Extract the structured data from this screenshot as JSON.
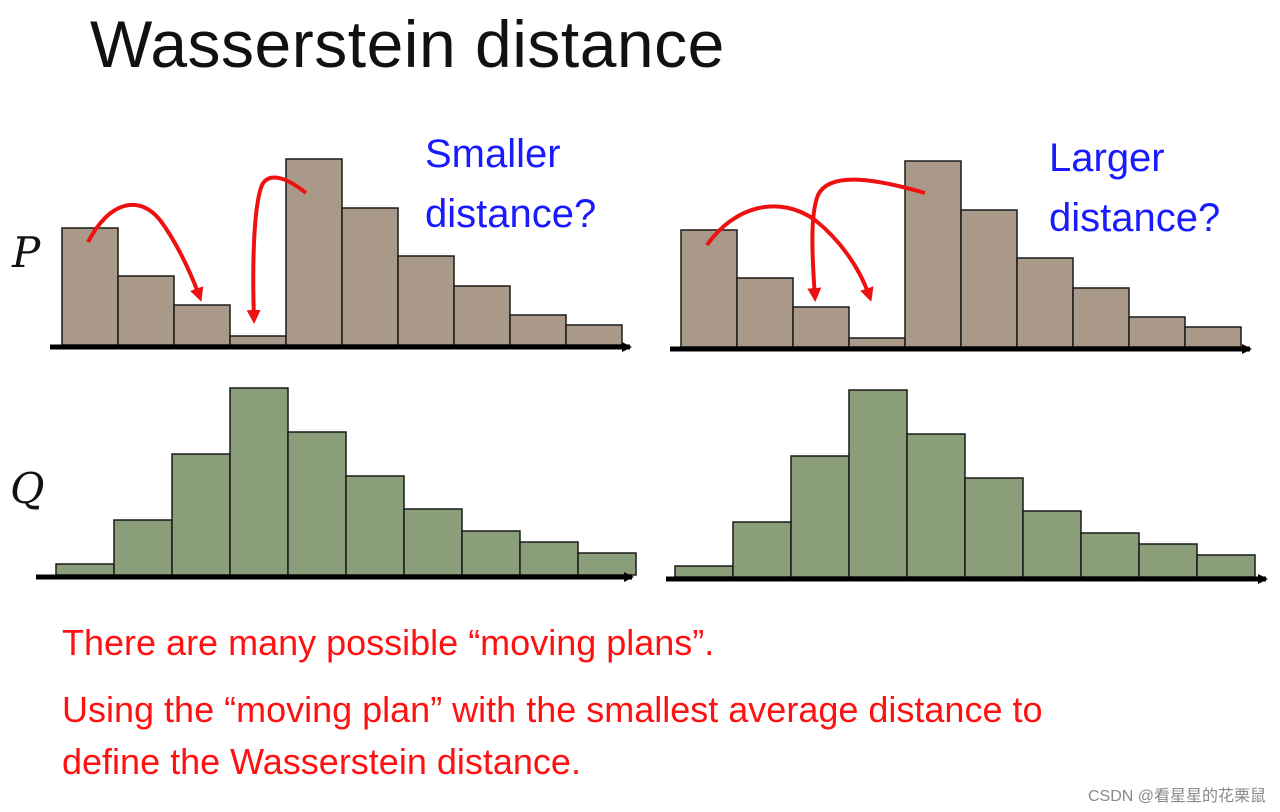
{
  "title": "Wasserstein distance",
  "labels": {
    "p": "P",
    "q": "Q"
  },
  "questions": {
    "left": [
      "Smaller",
      "distance?"
    ],
    "right": [
      "Larger",
      "distance?"
    ]
  },
  "captions": {
    "line1": "There are many possible “moving plans”.",
    "line2a": "Using the “moving plan” with the smallest average distance to",
    "line2b": "define the Wasserstein distance."
  },
  "watermark": "CSDN @看星星的花栗鼠",
  "colors": {
    "p_fill": "#aa9988",
    "q_fill": "#8a9e7a",
    "arrow": "#ee1111",
    "question": "#1a1aff",
    "caption": "#ff1111"
  },
  "chart_data": [
    {
      "type": "bar",
      "title": "P (left)",
      "values": [
        117,
        69,
        40,
        9,
        186,
        137,
        89,
        59,
        30,
        20
      ],
      "ylim": [
        0,
        190
      ]
    },
    {
      "type": "bar",
      "title": "P (right)",
      "values": [
        117,
        69,
        40,
        9,
        186,
        137,
        89,
        59,
        30,
        20
      ],
      "ylim": [
        0,
        190
      ]
    },
    {
      "type": "bar",
      "title": "Q (left)",
      "values": [
        11,
        55,
        121,
        187,
        143,
        99,
        66,
        44,
        33,
        22
      ],
      "ylim": [
        0,
        190
      ]
    },
    {
      "type": "bar",
      "title": "Q (right)",
      "values": [
        11,
        55,
        121,
        187,
        143,
        99,
        66,
        44,
        33,
        22
      ],
      "ylim": [
        0,
        190
      ]
    }
  ]
}
